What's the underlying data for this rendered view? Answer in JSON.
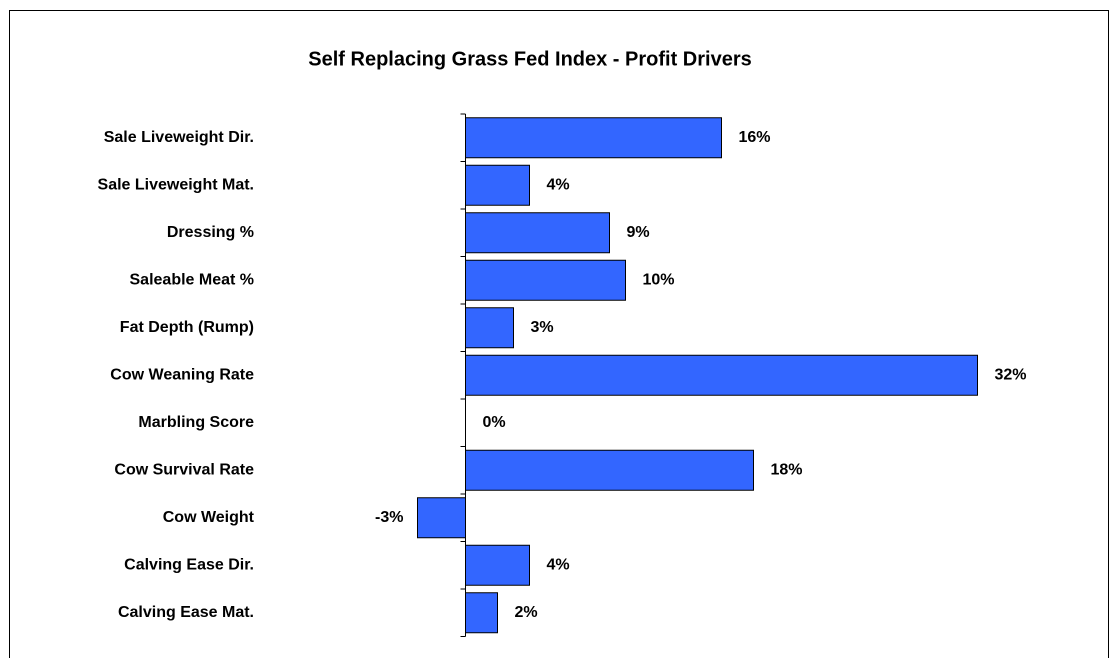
{
  "chart_data": {
    "type": "bar",
    "orientation": "horizontal",
    "title": "Self Replacing Grass Fed Index - Profit Drivers",
    "categories": [
      "Sale Liveweight Dir.",
      "Sale Liveweight Mat.",
      "Dressing %",
      "Saleable Meat %",
      "Fat Depth (Rump)",
      "Cow Weaning Rate",
      "Marbling Score",
      "Cow Survival Rate",
      "Cow Weight",
      "Calving Ease Dir.",
      "Calving Ease Mat."
    ],
    "values": [
      16,
      4,
      9,
      10,
      3,
      32,
      0,
      18,
      -3,
      4,
      2
    ],
    "value_labels": [
      "16%",
      "4%",
      "9%",
      "10%",
      "3%",
      "32%",
      "0%",
      "18%",
      "-3%",
      "4%",
      "2%"
    ],
    "color": "#3366ff"
  }
}
